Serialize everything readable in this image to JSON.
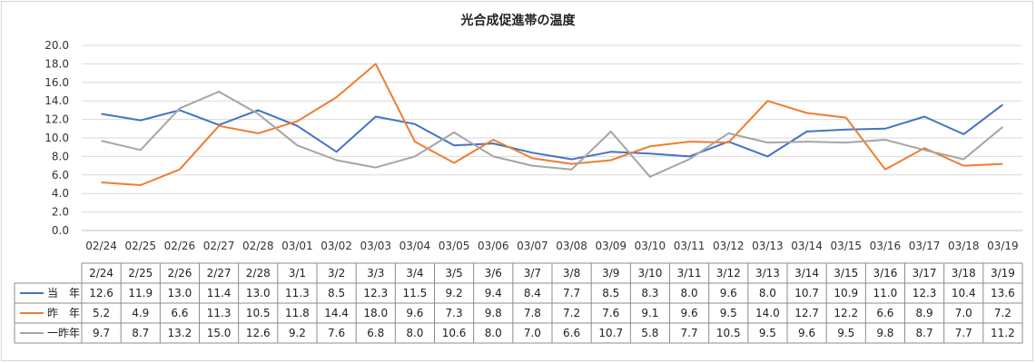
{
  "chart_data": {
    "type": "line",
    "title": "光合成促進帯の温度",
    "x_labels": [
      "02/24",
      "02/25",
      "02/26",
      "02/27",
      "02/28",
      "03/01",
      "03/02",
      "03/03",
      "03/04",
      "03/05",
      "03/06",
      "03/07",
      "03/08",
      "03/09",
      "03/10",
      "03/11",
      "03/12",
      "03/13",
      "03/14",
      "03/15",
      "03/16",
      "03/17",
      "03/18",
      "03/19"
    ],
    "table_headers": [
      "2/24",
      "2/25",
      "2/26",
      "2/27",
      "2/28",
      "3/1",
      "3/2",
      "3/3",
      "3/4",
      "3/5",
      "3/6",
      "3/7",
      "3/8",
      "3/9",
      "3/10",
      "3/11",
      "3/12",
      "3/13",
      "3/14",
      "3/15",
      "3/16",
      "3/17",
      "3/18",
      "3/19"
    ],
    "ylim": [
      0,
      20
    ],
    "yticks": [
      "0.0",
      "2.0",
      "4.0",
      "6.0",
      "8.0",
      "10.0",
      "12.0",
      "14.0",
      "16.0",
      "18.0",
      "20.0"
    ],
    "grid": true,
    "series": [
      {
        "name": "当　年",
        "color": "#4472c4",
        "values": [
          12.6,
          11.9,
          13.0,
          11.4,
          13.0,
          11.3,
          8.5,
          12.3,
          11.5,
          9.2,
          9.4,
          8.4,
          7.7,
          8.5,
          8.3,
          8.0,
          9.6,
          8.0,
          10.7,
          10.9,
          11.0,
          12.3,
          10.4,
          13.6
        ]
      },
      {
        "name": "昨　年",
        "color": "#ed7d31",
        "values": [
          5.2,
          4.9,
          6.6,
          11.3,
          10.5,
          11.8,
          14.4,
          18.0,
          9.6,
          7.3,
          9.8,
          7.8,
          7.2,
          7.6,
          9.1,
          9.6,
          9.5,
          14.0,
          12.7,
          12.2,
          6.6,
          8.9,
          7.0,
          7.2
        ]
      },
      {
        "name": "一昨年",
        "color": "#a5a5a5",
        "values": [
          9.7,
          8.7,
          13.2,
          15.0,
          12.6,
          9.2,
          7.6,
          6.8,
          8.0,
          10.6,
          8.0,
          7.0,
          6.6,
          10.7,
          5.8,
          7.7,
          10.5,
          9.5,
          9.6,
          9.5,
          9.8,
          8.7,
          7.7,
          11.2
        ]
      }
    ]
  }
}
